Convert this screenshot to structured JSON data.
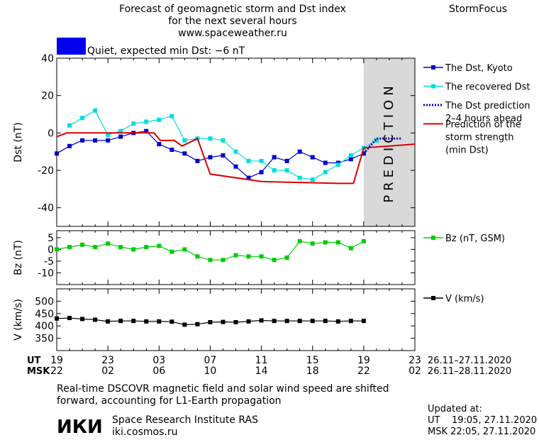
{
  "header": {
    "title_line1": "Forecast of geomagnetic storm and Dst index",
    "title_line2": "for the next several hours",
    "website": "www.spaceweather.ru",
    "brand": "StormFocus",
    "status_text": "Quiet, expected min Dst: −6 nT",
    "status_color": "#0000ee"
  },
  "prediction_label": "PREDICTION",
  "time_axis": {
    "ut_label": "UT",
    "msk_label": "MSK",
    "ut_ticks": [
      "19",
      "23",
      "03",
      "07",
      "11",
      "15",
      "19",
      "23"
    ],
    "msk_ticks": [
      "22",
      "02",
      "06",
      "10",
      "14",
      "18",
      "22",
      "02"
    ],
    "ut_range": "26.11–27.11.2020",
    "msk_range": "26.11–28.11.2020"
  },
  "footer": {
    "note_line1": "Real-time DSCOVR magnetic field and solar wind speed are shifted",
    "note_line2": "forward, accounting for L1-Earth propagation",
    "institute_logo": "ИКИ",
    "institute_name": "Space Research Institute RAS",
    "institute_site": "iki.cosmos.ru",
    "updated_label": "Updated at:",
    "updated_ut": "UT    19:05, 27.11.2020",
    "updated_msk": "MSK 22:05, 27.11.2020"
  },
  "chart_data": [
    {
      "type": "line",
      "panel": "dst",
      "ylabel": "Dst (nT)",
      "ylim": [
        -50,
        40
      ],
      "yticks": [
        40,
        20,
        0,
        -20,
        -40
      ],
      "xlim": [
        0,
        28
      ],
      "prediction_window": [
        24,
        28
      ],
      "series": [
        {
          "name": "The Dst, Kyoto",
          "color": "#0000cc",
          "marker": "square",
          "x": [
            0,
            1,
            2,
            3,
            4,
            5,
            6,
            7,
            8,
            9,
            10,
            11,
            12,
            13,
            14,
            15,
            16,
            17,
            18,
            19,
            20,
            21,
            22,
            23,
            24
          ],
          "y": [
            -11,
            -7,
            -4,
            -4,
            -4,
            -2,
            0,
            1,
            -6,
            -9,
            -11,
            -15,
            -13,
            -12,
            -18,
            -24,
            -21,
            -13,
            -15,
            -10,
            -13,
            -16,
            -16,
            -14,
            -11
          ]
        },
        {
          "name": "The recovered Dst",
          "color": "#00dddd",
          "marker": "square",
          "x": [
            1,
            2,
            3,
            4,
            5,
            6,
            7,
            8,
            9,
            10,
            11,
            12,
            13,
            14,
            15,
            16,
            17,
            18,
            19,
            20,
            21,
            22,
            23,
            24,
            25
          ],
          "y": [
            4,
            8,
            12,
            -1,
            1,
            5,
            6,
            7,
            9,
            -4,
            -3,
            -3,
            -4,
            -10,
            -15,
            -15,
            -20,
            -20,
            -24,
            -25,
            -21,
            -17,
            -12,
            -8,
            -4
          ]
        },
        {
          "name": "The Dst prediction\n2–4 hours ahead",
          "color": "#0000cc",
          "style": "dotted",
          "x": [
            24,
            25,
            27
          ],
          "y": [
            -11,
            -3,
            -3
          ]
        },
        {
          "name": "Prediction of the\nstorm strength\n(min Dst)",
          "color": "#dd0000",
          "style": "step",
          "x": [
            0,
            0.8,
            7.6,
            8.1,
            9.2,
            9.8,
            11.0,
            12.0,
            16.0,
            22.0,
            23.2,
            24.0,
            28.0
          ],
          "y": [
            -2,
            0,
            0,
            -4,
            -4,
            -7,
            -3,
            -22,
            -26,
            -27,
            -27,
            -8,
            -6
          ]
        }
      ]
    },
    {
      "type": "line",
      "panel": "bz",
      "ylabel": "Bz (nT)",
      "ylim": [
        -15,
        8
      ],
      "yticks": [
        5,
        0,
        -5,
        -10
      ],
      "xlim": [
        0,
        28
      ],
      "series": [
        {
          "name": "Bz (nT, GSM)",
          "color": "#00cc00",
          "marker": "square",
          "x": [
            0,
            1,
            2,
            3,
            4,
            5,
            6,
            7,
            8,
            9,
            10,
            11,
            12,
            13,
            14,
            15,
            16,
            17,
            18,
            19,
            20,
            21,
            22,
            23,
            24,
            25
          ],
          "y": [
            0,
            1,
            2,
            1,
            2.5,
            1,
            0,
            1,
            1.5,
            -1,
            0,
            -3,
            -4.5,
            -4.5,
            -2.5,
            -3,
            -3,
            -4.5,
            -3.5,
            3.5,
            2.5,
            3,
            3,
            0.5,
            3.5,
            null
          ]
        }
      ]
    },
    {
      "type": "line",
      "panel": "v",
      "ylabel": "V (km/s)",
      "ylim": [
        300,
        550
      ],
      "yticks": [
        500,
        450,
        400,
        350
      ],
      "xlim": [
        0,
        28
      ],
      "series": [
        {
          "name": "V (km/s)",
          "color": "#000000",
          "marker": "square",
          "x": [
            0,
            1,
            2,
            3,
            4,
            5,
            6,
            7,
            8,
            9,
            10,
            11,
            12,
            13,
            14,
            15,
            16,
            17,
            18,
            19,
            20,
            21,
            22,
            23,
            24,
            25
          ],
          "y": [
            430,
            432,
            428,
            425,
            418,
            420,
            420,
            418,
            418,
            417,
            405,
            407,
            415,
            416,
            415,
            418,
            422,
            420,
            420,
            420,
            420,
            420,
            418,
            420,
            420,
            null
          ]
        }
      ]
    }
  ]
}
